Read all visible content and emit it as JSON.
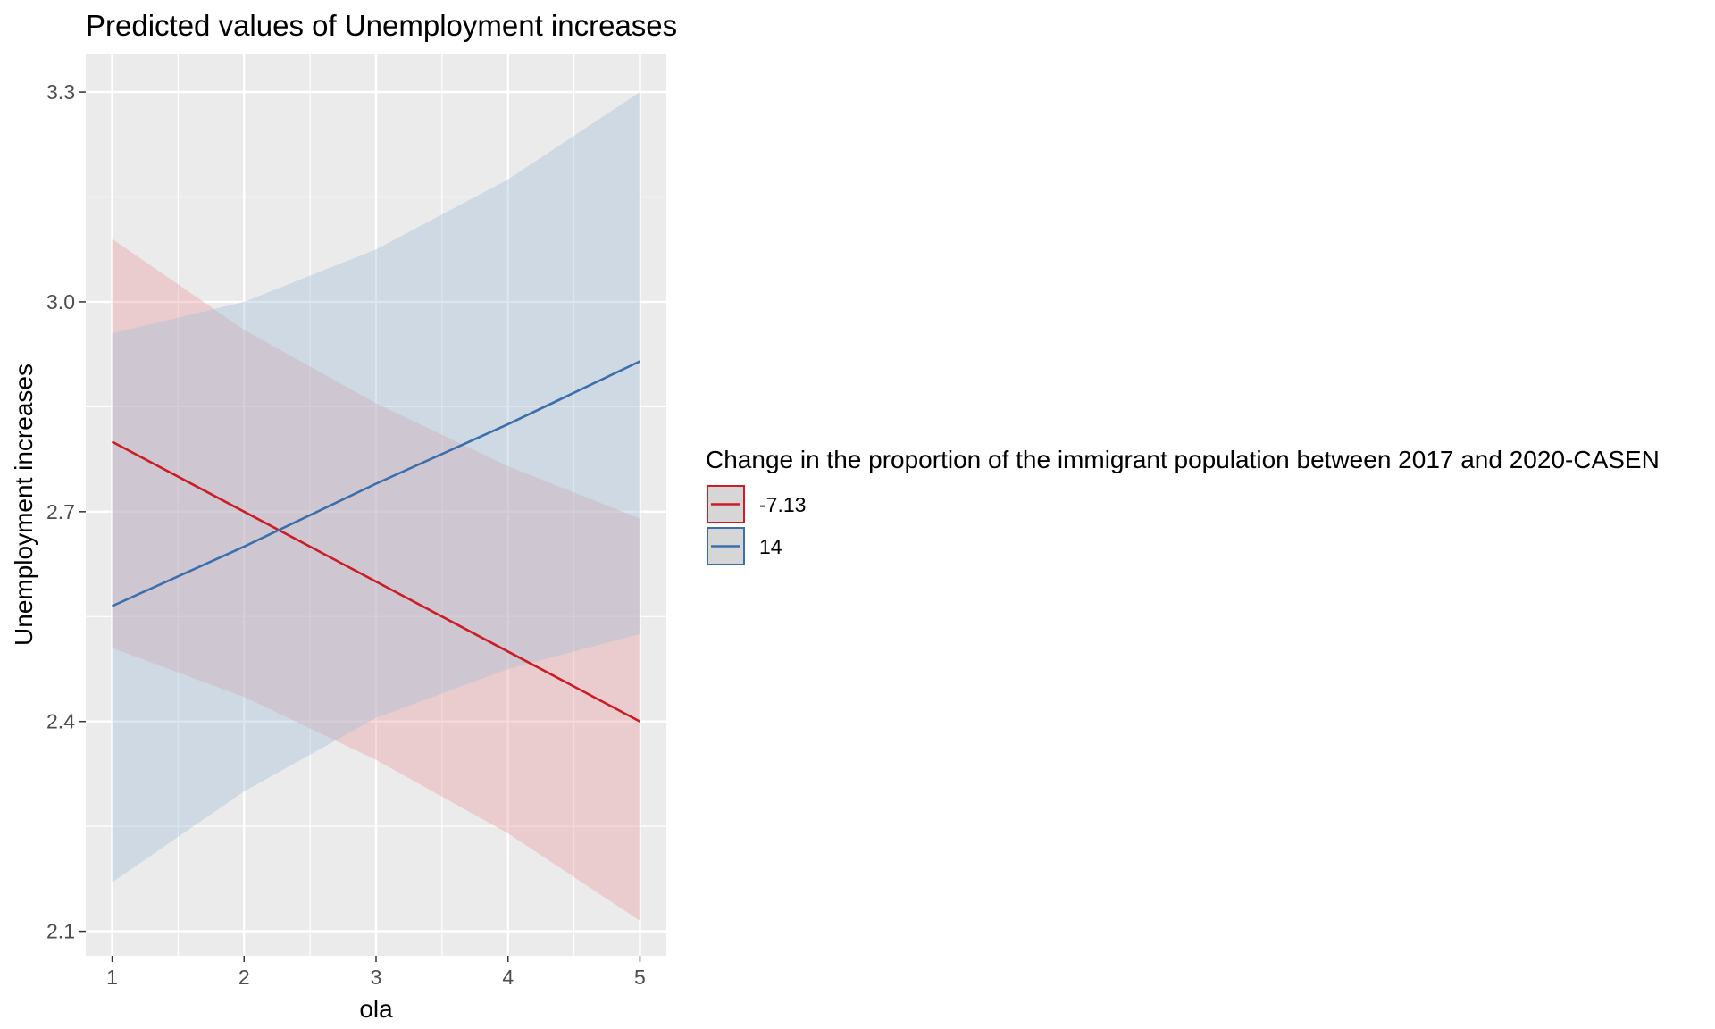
{
  "chart_data": {
    "type": "line",
    "title": "Predicted values of Unemployment increases",
    "xlabel": "ola",
    "ylabel": "Unemployment increases",
    "x": [
      1,
      2,
      3,
      4,
      5
    ],
    "x_ticks": [
      1,
      2,
      3,
      4,
      5
    ],
    "x_tick_labels": [
      "1",
      "2",
      "3",
      "4",
      "5"
    ],
    "xlim": [
      0.8,
      5.2
    ],
    "y_ticks": [
      2.1,
      2.4,
      2.7,
      3.0,
      3.3
    ],
    "y_tick_labels": [
      "2.1",
      "2.4",
      "2.7",
      "3.0",
      "3.3"
    ],
    "ylim": [
      2.065,
      3.355
    ],
    "grid": true,
    "panel_background": "#ebebeb",
    "legend": {
      "title": "Change in the proportion of the immigrant population between 2017 and 2020-CASEN",
      "position": "right"
    },
    "series": [
      {
        "name": "-7.13",
        "color": "#cc1c24",
        "fill": "#e9a3a6",
        "values": [
          2.8,
          2.7,
          2.6,
          2.5,
          2.4
        ],
        "lower": [
          2.505,
          2.435,
          2.345,
          2.24,
          2.115
        ],
        "upper": [
          3.09,
          2.96,
          2.855,
          2.765,
          2.69
        ]
      },
      {
        "name": "14",
        "color": "#3a6fab",
        "fill": "#a7c2d8",
        "values": [
          2.565,
          2.65,
          2.74,
          2.825,
          2.915
        ],
        "lower": [
          2.17,
          2.3,
          2.405,
          2.475,
          2.525
        ],
        "upper": [
          2.955,
          3.0,
          3.075,
          3.175,
          3.3
        ]
      }
    ]
  }
}
